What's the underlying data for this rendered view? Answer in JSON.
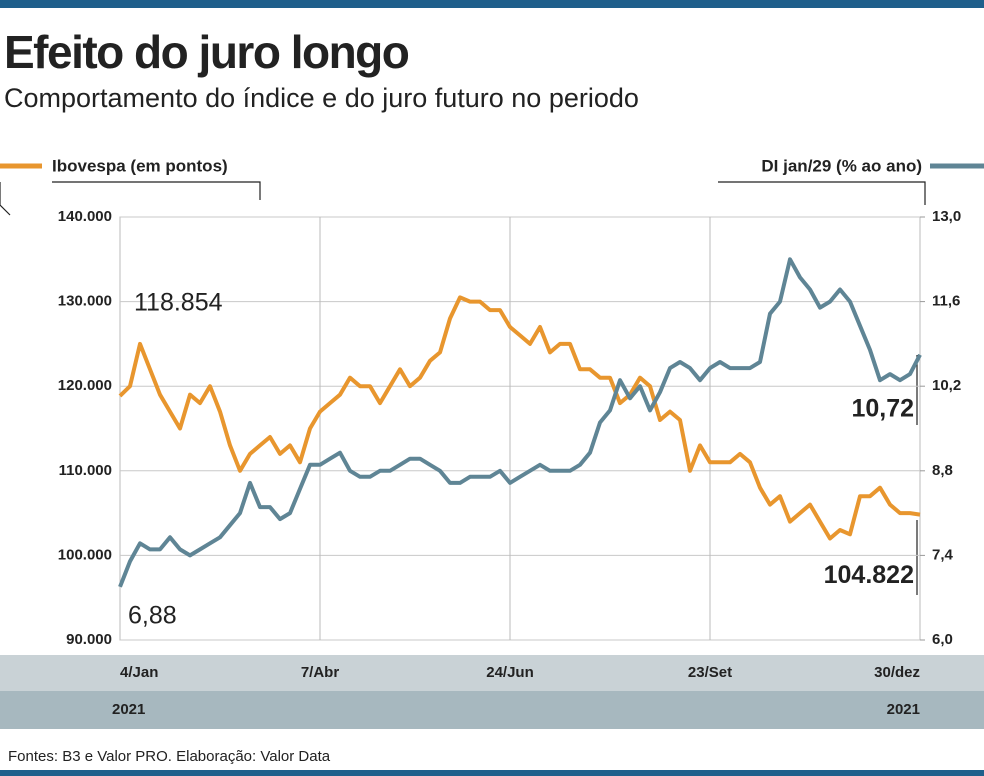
{
  "chart_data": {
    "type": "line",
    "title": "Efeito do juro longo",
    "subtitle": "Comportamento do índice e do juro futuro no periodo",
    "categories": [
      "4/Jan",
      null,
      null,
      null,
      null,
      null,
      null,
      null,
      null,
      null,
      null,
      null,
      null,
      null,
      null,
      null,
      null,
      null,
      null,
      null,
      "7/Abr",
      null,
      null,
      null,
      null,
      null,
      null,
      null,
      null,
      null,
      null,
      null,
      null,
      null,
      null,
      null,
      null,
      null,
      null,
      "24/Jun",
      null,
      null,
      null,
      null,
      null,
      null,
      null,
      null,
      null,
      null,
      null,
      null,
      null,
      null,
      null,
      null,
      null,
      null,
      null,
      "23/Set",
      null,
      null,
      null,
      null,
      null,
      null,
      null,
      null,
      null,
      null,
      null,
      null,
      null,
      null,
      null,
      null,
      null,
      null,
      null,
      null,
      "30/dez"
    ],
    "x_years": [
      "2021",
      "2021"
    ],
    "series": [
      {
        "name": "Ibovespa (em pontos)",
        "color": "#e8962e",
        "values": [
          118854,
          120000,
          125000,
          122000,
          119000,
          117000,
          115000,
          119000,
          118000,
          120000,
          117000,
          113000,
          110000,
          112000,
          113000,
          114000,
          112000,
          113000,
          111000,
          115000,
          117000,
          118000,
          119000,
          121000,
          120000,
          120000,
          118000,
          120000,
          122000,
          120000,
          121000,
          123000,
          124000,
          128000,
          130500,
          130000,
          130000,
          129000,
          129000,
          127000,
          126000,
          125000,
          127000,
          124000,
          125000,
          125000,
          122000,
          122000,
          121000,
          121000,
          118000,
          119000,
          121000,
          120000,
          116000,
          117000,
          116000,
          110000,
          113000,
          111000,
          111000,
          111000,
          112000,
          111000,
          108000,
          106000,
          107000,
          104000,
          105000,
          106000,
          104000,
          102000,
          103000,
          102500,
          107000,
          107000,
          108000,
          106000,
          105000,
          105000,
          104822
        ],
        "value_labels": [
          "118.854",
          null,
          null,
          null,
          null,
          null,
          null,
          null,
          null,
          null,
          null,
          null,
          null,
          null,
          null,
          null,
          null,
          null,
          null,
          null,
          null,
          null,
          null,
          null,
          null,
          null,
          null,
          null,
          null,
          null,
          null,
          null,
          null,
          null,
          null,
          null,
          null,
          null,
          null,
          null,
          null,
          null,
          null,
          null,
          null,
          null,
          null,
          null,
          null,
          null,
          null,
          null,
          null,
          null,
          null,
          null,
          null,
          null,
          null,
          null,
          null,
          null,
          null,
          null,
          null,
          null,
          null,
          null,
          null,
          null,
          null,
          null,
          null,
          null,
          null,
          null,
          null,
          null,
          null,
          null,
          "104.822"
        ]
      },
      {
        "name": "DI jan/29 (% ao ano)",
        "color": "#5f8595",
        "axis": "y2",
        "values": [
          6.88,
          7.3,
          7.6,
          7.5,
          7.5,
          7.7,
          7.5,
          7.4,
          7.5,
          7.6,
          7.7,
          7.9,
          8.1,
          8.6,
          8.2,
          8.2,
          8.0,
          8.1,
          8.5,
          8.9,
          8.9,
          9.0,
          9.1,
          8.8,
          8.7,
          8.7,
          8.8,
          8.8,
          8.9,
          9.0,
          9.0,
          8.9,
          8.8,
          8.6,
          8.6,
          8.7,
          8.7,
          8.7,
          8.8,
          8.6,
          8.7,
          8.8,
          8.9,
          8.8,
          8.8,
          8.8,
          8.9,
          9.1,
          9.6,
          9.8,
          10.3,
          10.0,
          10.2,
          9.8,
          10.1,
          10.5,
          10.6,
          10.5,
          10.3,
          10.5,
          10.6,
          10.5,
          10.5,
          10.5,
          10.6,
          11.4,
          11.6,
          12.3,
          12.0,
          11.8,
          11.5,
          11.6,
          11.8,
          11.6,
          11.2,
          10.8,
          10.3,
          10.4,
          10.3,
          10.4,
          10.72
        ],
        "value_labels": [
          "6,88",
          null,
          null,
          null,
          null,
          null,
          null,
          null,
          null,
          null,
          null,
          null,
          null,
          null,
          null,
          null,
          null,
          null,
          null,
          null,
          null,
          null,
          null,
          null,
          null,
          null,
          null,
          null,
          null,
          null,
          null,
          null,
          null,
          null,
          null,
          null,
          null,
          null,
          null,
          null,
          null,
          null,
          null,
          null,
          null,
          null,
          null,
          null,
          null,
          null,
          null,
          null,
          null,
          null,
          null,
          null,
          null,
          null,
          null,
          null,
          null,
          null,
          null,
          null,
          null,
          null,
          null,
          null,
          null,
          null,
          null,
          null,
          null,
          null,
          null,
          null,
          null,
          null,
          null,
          null,
          "10,72"
        ]
      }
    ],
    "ylim": [
      90000,
      140000
    ],
    "yticks": [
      {
        "value": 90000,
        "label": "90.000"
      },
      {
        "value": 100000,
        "label": "100.000"
      },
      {
        "value": 110000,
        "label": "110.000"
      },
      {
        "value": 120000,
        "label": "120.000"
      },
      {
        "value": 130000,
        "label": "130.000"
      },
      {
        "value": 140000,
        "label": "140.000"
      }
    ],
    "y2lim": [
      6,
      13
    ],
    "y2ticks": [
      {
        "value": 6,
        "label": "6,0"
      },
      {
        "value": 7.4,
        "label": "7,4"
      },
      {
        "value": 8.8,
        "label": "8,8"
      },
      {
        "value": 10.2,
        "label": "10,2"
      },
      {
        "value": 11.6,
        "label": "11,6"
      },
      {
        "value": 13,
        "label": "13,0"
      }
    ],
    "grid": true,
    "source": "Fontes: B3 e Valor PRO. Elaboração: Valor Data"
  }
}
